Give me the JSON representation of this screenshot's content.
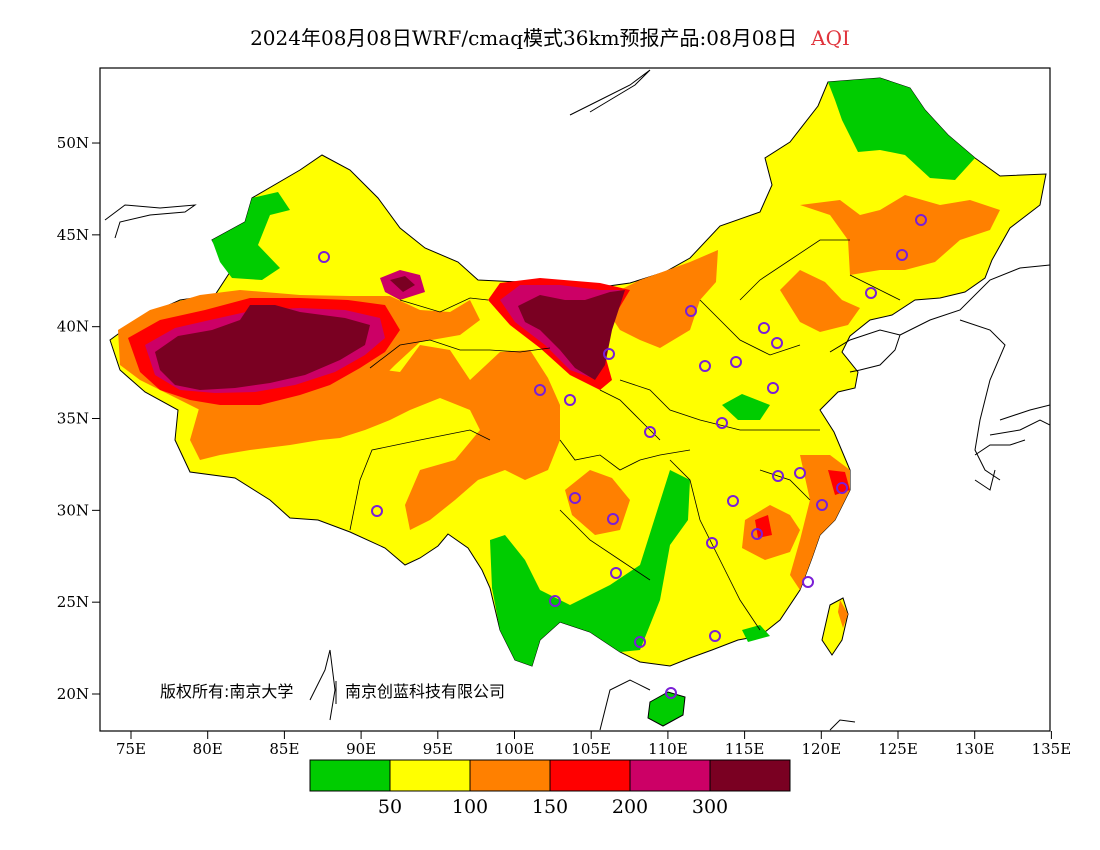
{
  "header": {
    "title_main": "2024年08月08日WRF/cmaq模式36km预报产品:08月08日",
    "title_variable": "AQI",
    "variable_color": "#e0343c"
  },
  "copyright": {
    "text_left": "版权所有:南京大学",
    "text_right": "南京创蓝科技有限公司"
  },
  "axes": {
    "x_ticks": [
      "75E",
      "80E",
      "85E",
      "90E",
      "95E",
      "100E",
      "105E",
      "110E",
      "115E",
      "120E",
      "125E",
      "130E",
      "135E"
    ],
    "y_ticks": [
      "20N",
      "25N",
      "30N",
      "35N",
      "40N",
      "45N",
      "50N"
    ]
  },
  "legend": {
    "colors": [
      "#00cc00",
      "#ffff00",
      "#ff8000",
      "#ff0000",
      "#cc0066",
      "#7a0022"
    ],
    "labels": [
      "50",
      "100",
      "150",
      "200",
      "300"
    ]
  },
  "colors": {
    "good": "#00cc00",
    "moderate": "#ffff00",
    "sensitive": "#ff8000",
    "unhealthy": "#ff0000",
    "very_unhealthy": "#cc0066",
    "hazardous": "#7a0022",
    "station_marker": "#7a1fd6"
  }
}
